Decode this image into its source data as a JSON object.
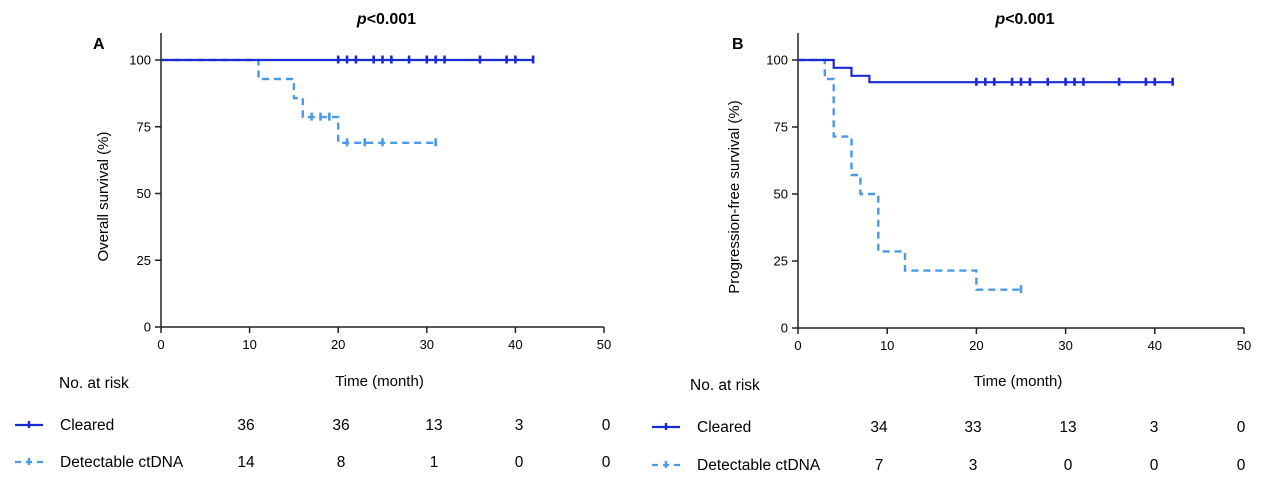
{
  "chart_data": [
    {
      "type": "line",
      "panel_label": "A",
      "title_p": "p",
      "title_rest": "<0.001",
      "xlabel": "Time (month)",
      "ylabel": "Overall survival (%)",
      "xlim": [
        0,
        50
      ],
      "ylim": [
        0,
        100
      ],
      "xticks": [
        0,
        10,
        20,
        30,
        40,
        50
      ],
      "yticks": [
        0,
        25,
        50,
        75,
        100
      ],
      "series": [
        {
          "name": "Cleared",
          "color": "#1a2bd6",
          "style": "solid",
          "steps": [
            [
              0,
              100
            ],
            [
              42,
              100
            ]
          ],
          "censors": [
            [
              20,
              100
            ],
            [
              21,
              100
            ],
            [
              22,
              100
            ],
            [
              24,
              100
            ],
            [
              25,
              100
            ],
            [
              26,
              100
            ],
            [
              28,
              100
            ],
            [
              30,
              100
            ],
            [
              31,
              100
            ],
            [
              32,
              100
            ],
            [
              36,
              100
            ],
            [
              39,
              100
            ],
            [
              40,
              100
            ],
            [
              42,
              100
            ]
          ]
        },
        {
          "name": "Detectable ctDNA",
          "color": "#4a9ae6",
          "style": "dashed",
          "steps": [
            [
              0,
              100
            ],
            [
              11,
              100
            ],
            [
              11,
              92.9
            ],
            [
              15,
              92.9
            ],
            [
              15,
              85.7
            ],
            [
              16,
              85.7
            ],
            [
              16,
              78.6
            ],
            [
              20,
              78.6
            ],
            [
              20,
              69
            ],
            [
              31,
              69
            ]
          ],
          "censors": [
            [
              17,
              78.6
            ],
            [
              18,
              78.6
            ],
            [
              19,
              78.6
            ],
            [
              21,
              69
            ],
            [
              23,
              69
            ],
            [
              25,
              69
            ],
            [
              31,
              69
            ]
          ]
        }
      ],
      "risk_table": {
        "heading": "No. at risk",
        "rows": [
          {
            "label": "Cleared",
            "values": [
              "36",
              "36",
              "13",
              "3",
              "0"
            ]
          },
          {
            "label": "Detectable ctDNA",
            "values": [
              "14",
              "8",
              "1",
              "0",
              "0"
            ]
          }
        ]
      }
    },
    {
      "type": "line",
      "panel_label": "B",
      "title_p": "p",
      "title_rest": "<0.001",
      "xlabel": "Time (month)",
      "ylabel": "Progression-free survival (%)",
      "xlim": [
        0,
        50
      ],
      "ylim": [
        0,
        100
      ],
      "xticks": [
        0,
        10,
        20,
        30,
        40,
        50
      ],
      "yticks": [
        0,
        25,
        50,
        75,
        100
      ],
      "series": [
        {
          "name": "Cleared",
          "color": "#1a2bd6",
          "style": "solid",
          "steps": [
            [
              0,
              100
            ],
            [
              4,
              100
            ],
            [
              4,
              97.1
            ],
            [
              6,
              97.1
            ],
            [
              6,
              94.1
            ],
            [
              8,
              94.1
            ],
            [
              8,
              91.7
            ],
            [
              42,
              91.7
            ]
          ],
          "censors": [
            [
              20,
              91.7
            ],
            [
              21,
              91.7
            ],
            [
              22,
              91.7
            ],
            [
              24,
              91.7
            ],
            [
              25,
              91.7
            ],
            [
              26,
              91.7
            ],
            [
              28,
              91.7
            ],
            [
              30,
              91.7
            ],
            [
              31,
              91.7
            ],
            [
              32,
              91.7
            ],
            [
              36,
              91.7
            ],
            [
              39,
              91.7
            ],
            [
              40,
              91.7
            ],
            [
              42,
              91.7
            ]
          ]
        },
        {
          "name": "Detectable ctDNA",
          "color": "#4a9ae6",
          "style": "dashed",
          "steps": [
            [
              0,
              100
            ],
            [
              3,
              100
            ],
            [
              3,
              92.9
            ],
            [
              4,
              92.9
            ],
            [
              4,
              71.4
            ],
            [
              6,
              71.4
            ],
            [
              6,
              57.1
            ],
            [
              7,
              57.1
            ],
            [
              7,
              50
            ],
            [
              9,
              50
            ],
            [
              9,
              28.6
            ],
            [
              12,
              28.6
            ],
            [
              12,
              21.4
            ],
            [
              20,
              21.4
            ],
            [
              20,
              14.3
            ],
            [
              25,
              14.3
            ]
          ],
          "censors": [
            [
              25,
              14.3
            ]
          ]
        }
      ],
      "risk_table": {
        "heading": "No. at risk",
        "rows": [
          {
            "label": "Cleared",
            "values": [
              "34",
              "33",
              "13",
              "3",
              "0"
            ]
          },
          {
            "label": "Detectable ctDNA",
            "values": [
              "7",
              "3",
              "0",
              "0",
              "0"
            ]
          }
        ]
      }
    }
  ]
}
